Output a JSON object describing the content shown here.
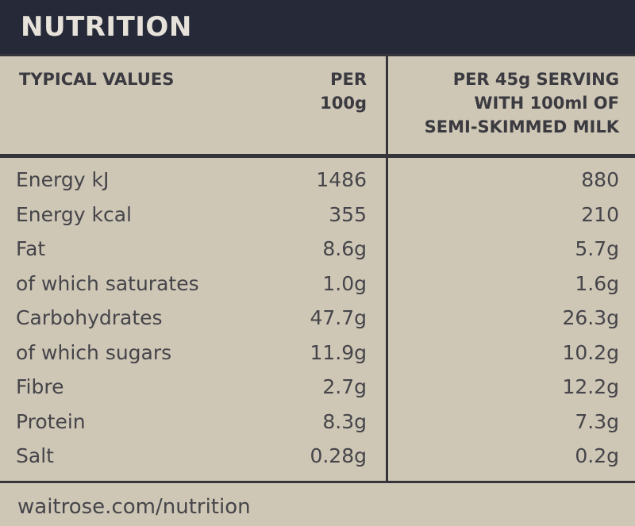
{
  "header": {
    "title": "NUTRITION"
  },
  "table": {
    "headers": [
      [
        "TYPICAL VALUES"
      ],
      [
        "PER",
        "100g"
      ],
      [
        "PER 45g SERVING",
        "WITH 100ml OF",
        "SEMI-SKIMMED MILK"
      ]
    ],
    "rows": [
      [
        "Energy kJ",
        "1486",
        "880"
      ],
      [
        "Energy kcal",
        "355",
        "210"
      ],
      [
        "Fat",
        "8.6g",
        "5.7g"
      ],
      [
        "of which saturates",
        "1.0g",
        "1.6g"
      ],
      [
        "Carbohydrates",
        "47.7g",
        "26.3g"
      ],
      [
        "of which sugars",
        "11.9g",
        "10.2g"
      ],
      [
        "Fibre",
        "2.7g",
        "12.2g"
      ],
      [
        "Protein",
        "8.3g",
        "7.3g"
      ],
      [
        "Salt",
        "0.28g",
        "0.2g"
      ]
    ]
  },
  "footer": {
    "text": "waitrose.com/nutrition"
  }
}
